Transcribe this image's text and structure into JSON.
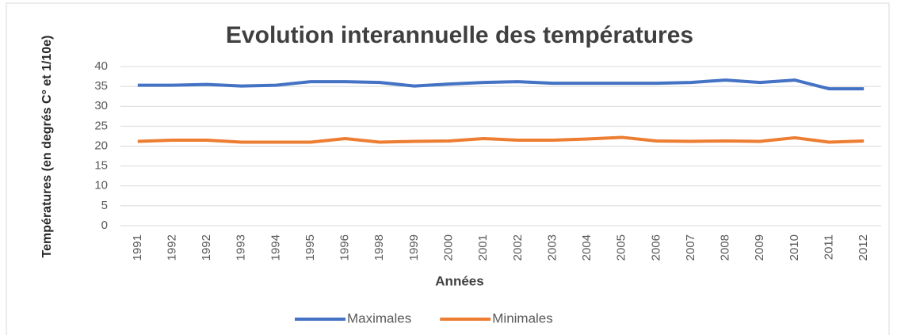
{
  "chart_data": {
    "type": "line",
    "title": "Evolution interannuelle des températures",
    "x_label": "Années",
    "y_label": "Températures (en degrés C° et 1/10e)",
    "categories": [
      "1991",
      "1992",
      "1992",
      "1993",
      "1994",
      "1995",
      "1996",
      "1998",
      "1999",
      "2000",
      "2001",
      "2002",
      "2003",
      "2004",
      "2005",
      "2006",
      "2007",
      "2008",
      "2009",
      "2010",
      "2011",
      "2012"
    ],
    "series": [
      {
        "name": "Maximales",
        "color": "#4472c4",
        "values": [
          35.3,
          35.3,
          35.5,
          35.1,
          35.3,
          36.2,
          36.2,
          36,
          35.1,
          35.6,
          36,
          36.2,
          35.8,
          35.8,
          35.8,
          35.8,
          36,
          36.6,
          36,
          36.6,
          34.4,
          34.4
        ]
      },
      {
        "name": "Minimales",
        "color": "#ed7d31",
        "values": [
          21.2,
          21.5,
          21.5,
          21,
          21,
          21,
          21.9,
          21,
          21.2,
          21.3,
          21.9,
          21.5,
          21.5,
          21.8,
          22.2,
          21.3,
          21.2,
          21.3,
          21.2,
          22.1,
          21,
          21.3
        ]
      }
    ],
    "ylim": [
      0,
      40
    ],
    "yticks": [
      0,
      5,
      10,
      15,
      20,
      25,
      30,
      35,
      40
    ],
    "grid": true,
    "legend": "bottom"
  }
}
